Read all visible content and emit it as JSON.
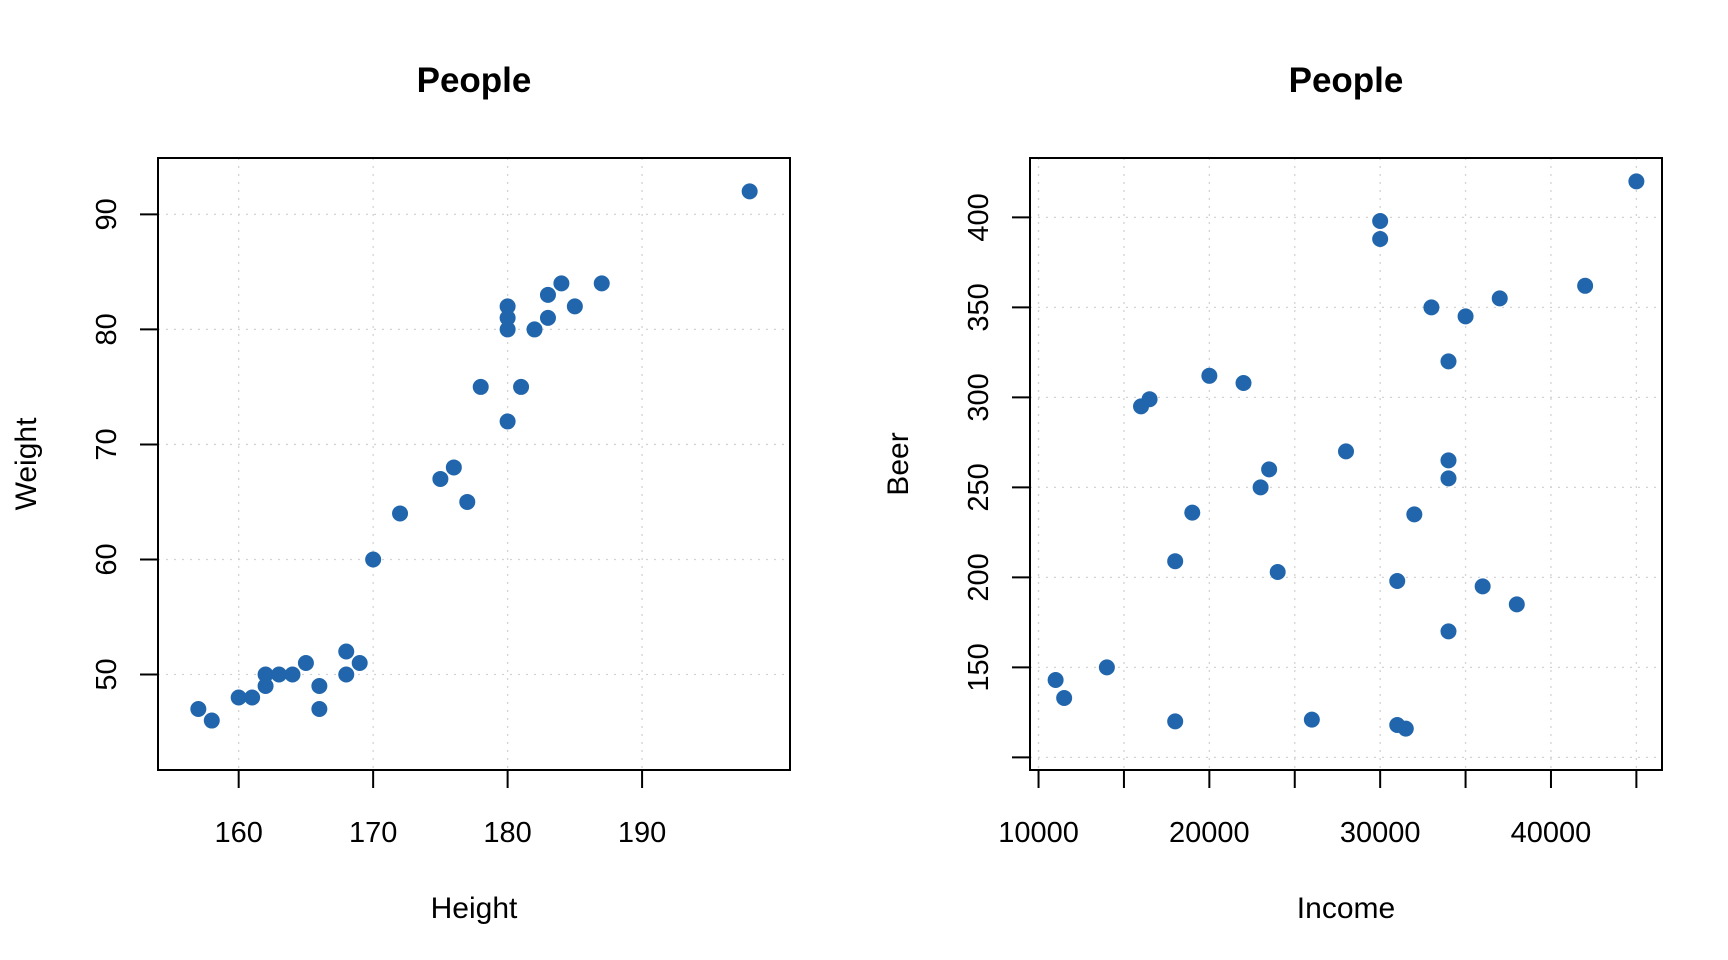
{
  "chart_data": [
    {
      "type": "scatter",
      "title": "People",
      "xlabel": "Height",
      "ylabel": "Weight",
      "xlim": [
        154,
        201
      ],
      "ylim": [
        41.7,
        94.9
      ],
      "xticks": [
        160,
        170,
        180,
        190
      ],
      "yticks": [
        50,
        60,
        70,
        80,
        90
      ],
      "grid": true,
      "color": "#2166ac",
      "points": [
        {
          "x": 157,
          "y": 47
        },
        {
          "x": 158,
          "y": 46
        },
        {
          "x": 160,
          "y": 48
        },
        {
          "x": 161,
          "y": 48
        },
        {
          "x": 162,
          "y": 50
        },
        {
          "x": 162,
          "y": 49
        },
        {
          "x": 163,
          "y": 50
        },
        {
          "x": 164,
          "y": 50
        },
        {
          "x": 165,
          "y": 51
        },
        {
          "x": 166,
          "y": 49
        },
        {
          "x": 166,
          "y": 47
        },
        {
          "x": 168,
          "y": 52
        },
        {
          "x": 168,
          "y": 50
        },
        {
          "x": 169,
          "y": 51
        },
        {
          "x": 170,
          "y": 60
        },
        {
          "x": 172,
          "y": 64
        },
        {
          "x": 175,
          "y": 67
        },
        {
          "x": 176,
          "y": 68
        },
        {
          "x": 177,
          "y": 65
        },
        {
          "x": 178,
          "y": 75
        },
        {
          "x": 180,
          "y": 82
        },
        {
          "x": 180,
          "y": 81
        },
        {
          "x": 180,
          "y": 80
        },
        {
          "x": 180,
          "y": 72
        },
        {
          "x": 181,
          "y": 75
        },
        {
          "x": 182,
          "y": 80
        },
        {
          "x": 183,
          "y": 83
        },
        {
          "x": 183,
          "y": 81
        },
        {
          "x": 184,
          "y": 84
        },
        {
          "x": 185,
          "y": 82
        },
        {
          "x": 187,
          "y": 84
        },
        {
          "x": 198,
          "y": 92
        }
      ]
    },
    {
      "type": "scatter",
      "title": "People",
      "xlabel": "Income",
      "ylabel": "Beer",
      "xlim": [
        9500,
        46500
      ],
      "ylim": [
        93,
        433
      ],
      "xticks": [
        10000,
        20000,
        30000,
        40000
      ],
      "xticks_minor": [
        15000,
        25000,
        35000,
        45000
      ],
      "yticks": [
        150,
        200,
        250,
        300,
        350,
        400
      ],
      "yticks_minor": [
        100
      ],
      "grid": true,
      "color": "#2166ac",
      "points": [
        {
          "x": 11000,
          "y": 143
        },
        {
          "x": 11500,
          "y": 133
        },
        {
          "x": 14000,
          "y": 150
        },
        {
          "x": 16000,
          "y": 295
        },
        {
          "x": 16500,
          "y": 299
        },
        {
          "x": 18000,
          "y": 209
        },
        {
          "x": 18000,
          "y": 120
        },
        {
          "x": 19000,
          "y": 236
        },
        {
          "x": 20000,
          "y": 312
        },
        {
          "x": 22000,
          "y": 308
        },
        {
          "x": 23000,
          "y": 250
        },
        {
          "x": 23500,
          "y": 260
        },
        {
          "x": 24000,
          "y": 203
        },
        {
          "x": 26000,
          "y": 121
        },
        {
          "x": 28000,
          "y": 270
        },
        {
          "x": 30000,
          "y": 398
        },
        {
          "x": 30000,
          "y": 388
        },
        {
          "x": 31000,
          "y": 198
        },
        {
          "x": 31000,
          "y": 118
        },
        {
          "x": 31500,
          "y": 116
        },
        {
          "x": 32000,
          "y": 235
        },
        {
          "x": 33000,
          "y": 350
        },
        {
          "x": 34000,
          "y": 320
        },
        {
          "x": 34000,
          "y": 265
        },
        {
          "x": 34000,
          "y": 255
        },
        {
          "x": 34000,
          "y": 170
        },
        {
          "x": 35000,
          "y": 345
        },
        {
          "x": 36000,
          "y": 195
        },
        {
          "x": 37000,
          "y": 355
        },
        {
          "x": 38000,
          "y": 185
        },
        {
          "x": 42000,
          "y": 362
        },
        {
          "x": 45000,
          "y": 420
        }
      ]
    }
  ]
}
